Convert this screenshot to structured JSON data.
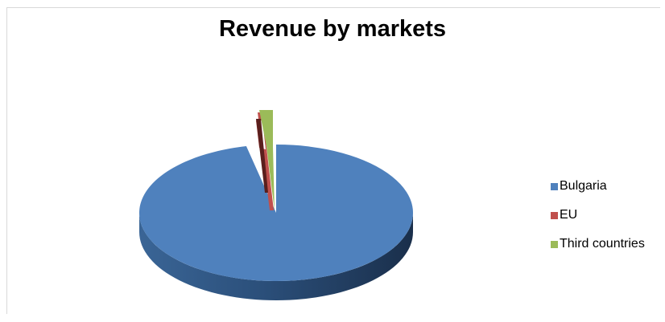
{
  "chart_data": {
    "type": "pie",
    "title": "Revenue by markets",
    "categories": [
      "Bulgaria",
      "EU",
      "Third countries"
    ],
    "values": [
      96.5,
      1.2,
      2.3
    ],
    "colors": [
      "#4f81bd",
      "#c0504d",
      "#9bbb59"
    ],
    "legend_position": "right",
    "style": "3d-exploded"
  }
}
